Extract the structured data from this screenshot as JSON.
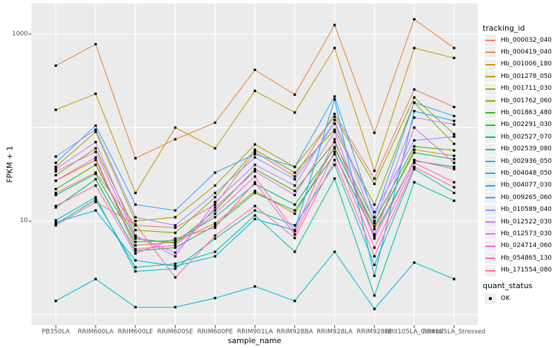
{
  "colors": {
    "panel_bg": "#ebebeb",
    "grid": "#ffffff",
    "point": "#000000",
    "tick_text": "#4d4d4d",
    "tick_mark": "#333333"
  },
  "chart_data": {
    "type": "line",
    "title": "",
    "xlabel": "sample_name",
    "ylabel": "FPKM + 1",
    "y_scale": "log10",
    "y_tick_labels": [
      "1000",
      "10"
    ],
    "y_tick_values": [
      1000,
      10
    ],
    "y_gridline_values": [
      1,
      10,
      100,
      1000
    ],
    "ylim": [
      0.75,
      2100
    ],
    "grid": true,
    "legend_position": "right",
    "categories": [
      "PB350LA",
      "RRIM600LA",
      "RRIM600LE",
      "RRIM600SE",
      "RRIM600PE",
      "RRIM901LA",
      "RRIM928BA",
      "RRIM928LA",
      "RRIM928LE",
      "RRII105LA_Control",
      "RRII105LA_Stressed"
    ],
    "series": [
      {
        "name": "Hb_000032_040",
        "color": "#F8766D",
        "values": [
          20,
          33,
          9,
          8.5,
          15,
          55,
          30,
          140,
          28.5,
          256,
          166
        ]
      },
      {
        "name": "Hb_000419_040",
        "color": "#EA8331",
        "values": [
          460,
          780,
          47,
          75,
          113,
          415,
          225,
          1250,
          88,
          1440,
          710
        ]
      },
      {
        "name": "Hb_001006_180",
        "color": "#D89000",
        "values": [
          27,
          45,
          5.5,
          6,
          9.5,
          21,
          12,
          62,
          8.2,
          58,
          50
        ]
      },
      {
        "name": "Hb_001278_050",
        "color": "#C09B00",
        "values": [
          155,
          230,
          20,
          100,
          60,
          247,
          145,
          710,
          34.5,
          710,
          556
        ]
      },
      {
        "name": "Hb_001711_030",
        "color": "#A3A500",
        "values": [
          38,
          90,
          10,
          11,
          24,
          66,
          38,
          130,
          25,
          210,
          85
        ]
      },
      {
        "name": "Hb_001762_060",
        "color": "#7CAE00",
        "values": [
          31,
          60,
          8,
          7.5,
          18,
          58,
          33,
          95,
          15,
          185,
          67
        ]
      },
      {
        "name": "Hb_001863_480",
        "color": "#39B600",
        "values": [
          22,
          40,
          6.5,
          5.8,
          13,
          36,
          21,
          70,
          10,
          63,
          57
        ]
      },
      {
        "name": "Hb_002291_030",
        "color": "#00BB4E",
        "values": [
          14,
          28,
          4.8,
          5.2,
          9,
          20,
          13,
          52,
          7.2,
          44,
          38
        ]
      },
      {
        "name": "Hb_002527_070",
        "color": "#00BF7D",
        "values": [
          19,
          32,
          6,
          6.2,
          11,
          25,
          15,
          60,
          8.8,
          54,
          46
        ]
      },
      {
        "name": "Hb_002539_080",
        "color": "#00C1A3",
        "values": [
          9.3,
          17,
          3.2,
          3.5,
          4.7,
          11.5,
          4.7,
          28.5,
          1.6,
          26,
          16.5
        ]
      },
      {
        "name": "Hb_002936_050",
        "color": "#00BFC4",
        "values": [
          10.2,
          18,
          2.9,
          3.1,
          6.5,
          13,
          9,
          40,
          3.4,
          36,
          20
        ]
      },
      {
        "name": "Hb_004048_050",
        "color": "#00BAE0",
        "values": [
          1.4,
          2.4,
          1.2,
          1.2,
          1.5,
          2,
          1.4,
          4.7,
          1.15,
          3.6,
          2.4
        ]
      },
      {
        "name": "Hb_004077_030",
        "color": "#00B0F6",
        "values": [
          9.7,
          13,
          3.8,
          3.3,
          4.2,
          10.5,
          8,
          200,
          2.6,
          150,
          118
        ]
      },
      {
        "name": "Hb_009265_060",
        "color": "#35A2FF",
        "values": [
          42,
          105,
          15,
          13,
          33,
          52,
          38,
          215,
          11,
          185,
          133
        ]
      },
      {
        "name": "Hb_010589_040",
        "color": "#9590FF",
        "values": [
          49,
          95,
          11,
          9,
          20,
          48,
          28,
          110,
          12.5,
          73,
          80
        ]
      },
      {
        "name": "Hb_012522_030",
        "color": "#C77CFF",
        "values": [
          36,
          70,
          7,
          4.2,
          16,
          40,
          24,
          120,
          9.5,
          128,
          108
        ]
      },
      {
        "name": "Hb_012573_030",
        "color": "#E76BF3",
        "values": [
          34,
          55,
          6.8,
          4.6,
          14,
          34,
          19,
          90,
          6.8,
          100,
          42
        ]
      },
      {
        "name": "Hb_024714_060",
        "color": "#FA62DB",
        "values": [
          27,
          48,
          5,
          5.5,
          12,
          30,
          7.8,
          75,
          6.5,
          45,
          36
        ]
      },
      {
        "name": "Hb_054865_130",
        "color": "#FF62BC",
        "values": [
          14.5,
          24,
          4.5,
          6.5,
          8.5,
          26,
          7.2,
          55,
          5.2,
          42,
          26
        ]
      },
      {
        "name": "Hb_171554_080",
        "color": "#FF6A98",
        "values": [
          9,
          16,
          9.2,
          2.5,
          7,
          14.5,
          6.6,
          45,
          4.2,
          38,
          23
        ]
      }
    ],
    "legend": {
      "series_title": "tracking_id",
      "status_title": "quant_status",
      "status_items": [
        {
          "label": "OK"
        }
      ]
    }
  }
}
